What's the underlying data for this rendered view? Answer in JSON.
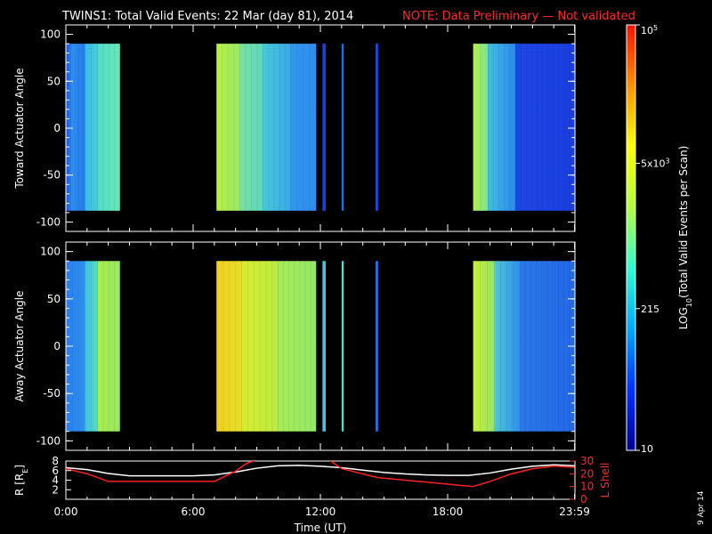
{
  "title": "TWINS1: Total Valid Events: 22 Mar (day  81), 2014",
  "note": "NOTE: Data Preliminary — Not validated",
  "footer_date": "9 Apr 14",
  "chart_data": [
    {
      "type": "heatmap",
      "ylabel": "Toward Actuator Angle",
      "ylim": [
        -110,
        110
      ],
      "yticks": [
        "100",
        "50",
        "0",
        "-50",
        "-100"
      ],
      "data_yrange": [
        -88,
        90
      ],
      "x_unit": "hours UT",
      "segments": [
        {
          "x": [
            0.0,
            0.25
          ],
          "colors": [
            "#1a55e8",
            "#2a80ee"
          ]
        },
        {
          "x": [
            0.25,
            0.9
          ],
          "colors": [
            "#2e8ef0",
            "#2878ea"
          ]
        },
        {
          "x": [
            0.9,
            1.5
          ],
          "colors": [
            "#3ab8e8",
            "#48d0d8"
          ]
        },
        {
          "x": [
            1.5,
            2.55
          ],
          "colors": [
            "#54dcc8",
            "#66e8b8"
          ]
        },
        {
          "x": [
            7.1,
            8.2
          ],
          "colors": [
            "#b8f040",
            "#9ae868"
          ]
        },
        {
          "x": [
            8.2,
            9.3
          ],
          "colors": [
            "#78e0a0",
            "#5cd8c0"
          ]
        },
        {
          "x": [
            9.3,
            10.6
          ],
          "colors": [
            "#46c8d8",
            "#3aa8e8"
          ]
        },
        {
          "x": [
            10.6,
            11.8
          ],
          "colors": [
            "#3296ec",
            "#2e8ef0"
          ]
        },
        {
          "x": [
            12.1,
            12.25
          ],
          "colors": [
            "#1c40e0",
            "#1c40e0"
          ]
        },
        {
          "x": [
            13.0,
            13.1
          ],
          "colors": [
            "#2070e8",
            "#2070e8"
          ]
        },
        {
          "x": [
            14.6,
            14.72
          ],
          "colors": [
            "#1c48e0",
            "#1c48e0"
          ]
        },
        {
          "x": [
            19.2,
            19.9
          ],
          "colors": [
            "#b4f048",
            "#7ce498"
          ]
        },
        {
          "x": [
            19.9,
            21.2
          ],
          "colors": [
            "#40c0e0",
            "#2c88ee"
          ]
        },
        {
          "x": [
            21.2,
            23.99
          ],
          "colors": [
            "#1c46e4",
            "#1a3ee0"
          ]
        }
      ]
    },
    {
      "type": "heatmap",
      "ylabel": "Away Actuator Angle",
      "ylim": [
        -110,
        110
      ],
      "yticks": [
        "100",
        "50",
        "0",
        "-50",
        "-100"
      ],
      "data_yrange": [
        -90,
        90
      ],
      "x_unit": "hours UT",
      "segments": [
        {
          "x": [
            0.0,
            0.9
          ],
          "colors": [
            "#2a80ee",
            "#2e8ef0"
          ]
        },
        {
          "x": [
            0.9,
            1.5
          ],
          "colors": [
            "#40c0e0",
            "#58dcc4"
          ]
        },
        {
          "x": [
            1.5,
            2.55
          ],
          "colors": [
            "#a8ec50",
            "#98e860"
          ]
        },
        {
          "x": [
            7.1,
            8.3
          ],
          "colors": [
            "#f0d020",
            "#e8e028"
          ]
        },
        {
          "x": [
            8.3,
            10.0
          ],
          "colors": [
            "#d8ec30",
            "#bcec44"
          ]
        },
        {
          "x": [
            10.0,
            11.8
          ],
          "colors": [
            "#a8ec58",
            "#94e868"
          ]
        },
        {
          "x": [
            12.1,
            12.25
          ],
          "colors": [
            "#46c8d8",
            "#46c8d8"
          ]
        },
        {
          "x": [
            13.0,
            13.1
          ],
          "colors": [
            "#5cdcc4",
            "#5cdcc4"
          ]
        },
        {
          "x": [
            14.6,
            14.72
          ],
          "colors": [
            "#2470e8",
            "#2470e8"
          ]
        },
        {
          "x": [
            19.2,
            20.2
          ],
          "colors": [
            "#c8f038",
            "#98e468"
          ]
        },
        {
          "x": [
            20.2,
            21.4
          ],
          "colors": [
            "#4ec8d4",
            "#2e90ec"
          ]
        },
        {
          "x": [
            21.4,
            23.99
          ],
          "colors": [
            "#2a78ea",
            "#2468e6"
          ]
        }
      ]
    },
    {
      "type": "line",
      "xlabel": "Time (UT)",
      "xticks": [
        "0:00",
        "6:00",
        "12:00",
        "18:00",
        "23:59"
      ],
      "xtick_hours": [
        0,
        6,
        12,
        18,
        23.983
      ],
      "xlim": [
        0,
        24
      ],
      "ylabel_left": "R [R",
      "ylabel_left_sub": "E",
      "ylabel_left_end": "]",
      "ylabel_right": "L Shell",
      "yticks_left": [
        "8",
        "6",
        "4",
        "2"
      ],
      "yticks_right": [
        "30",
        "20",
        "10",
        "0"
      ],
      "ylim_left": [
        0,
        8
      ],
      "ylim_right": [
        0,
        30
      ],
      "series": [
        {
          "color": "#ffffff",
          "axis": "left",
          "x": [
            0,
            1,
            2,
            3,
            4,
            5,
            6,
            7,
            8,
            9,
            10,
            11,
            12,
            13,
            14,
            15,
            16,
            17,
            18,
            19,
            20,
            21,
            22,
            23,
            23.98
          ],
          "y": [
            6.6,
            6.2,
            5.4,
            4.9,
            4.9,
            4.9,
            4.9,
            5.1,
            5.7,
            6.5,
            7.0,
            7.1,
            6.9,
            6.6,
            6.1,
            5.6,
            5.3,
            5.1,
            5.0,
            5.0,
            5.5,
            6.3,
            6.9,
            7.2,
            7.0
          ]
        },
        {
          "color": "#ff2020",
          "axis": "right",
          "x": [
            0,
            1,
            2,
            3,
            4,
            5,
            6,
            7,
            8,
            8.5,
            9.0,
            12.4,
            13.0,
            14.7,
            19.2,
            20,
            21,
            22,
            23,
            23.98
          ],
          "y": [
            24,
            20,
            14,
            14,
            14,
            14,
            14,
            14,
            22,
            28,
            31,
            31,
            24,
            17,
            10,
            14,
            20,
            24,
            26,
            25
          ]
        }
      ]
    },
    {
      "type": "heatmap",
      "role": "colorbar",
      "ylabel": "LOG",
      "ylabel_sub": "10",
      "ylabel_rest": "(Total Valid  Events per Scan)",
      "scale": "log",
      "range": [
        10,
        100000
      ],
      "tick_labels": [
        {
          "value": 100000,
          "base": "10",
          "sup": "5"
        },
        {
          "value": 5000,
          "base": "5x10",
          "sup": "3"
        },
        {
          "value": 215,
          "base": "215",
          "sup": ""
        },
        {
          "value": 10,
          "base": "10",
          "sup": ""
        }
      ],
      "colors": [
        "#000090",
        "#0030ff",
        "#00a8ff",
        "#30ffd0",
        "#b0ff40",
        "#ffff00",
        "#ff9000",
        "#ff1000"
      ]
    }
  ]
}
